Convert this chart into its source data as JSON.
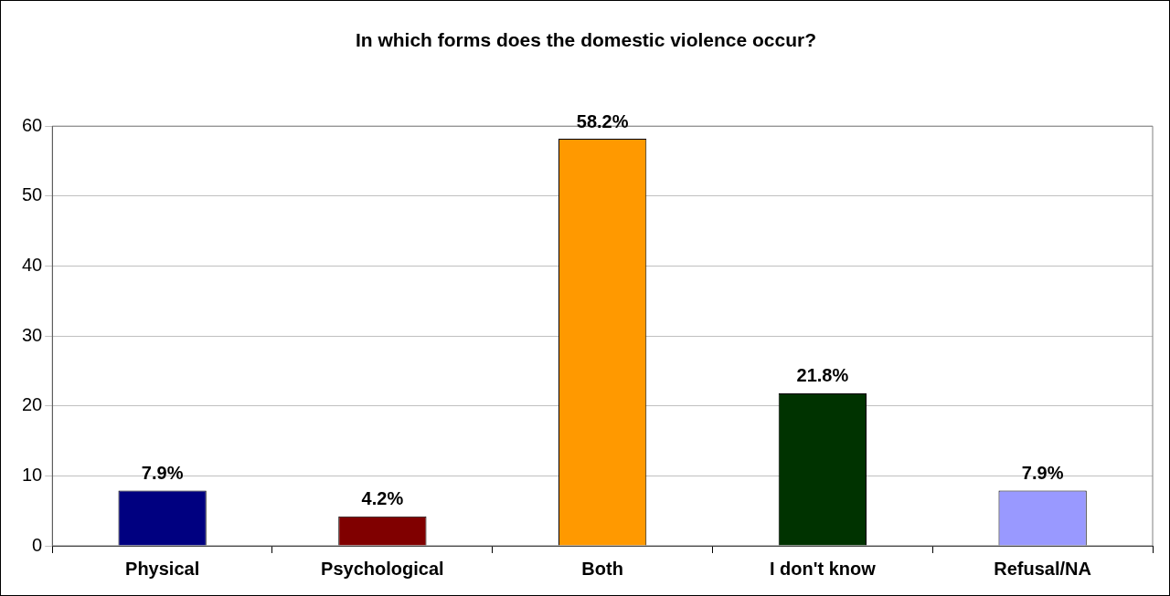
{
  "chart_data": {
    "type": "bar",
    "title": "In which forms does the domestic violence occur?",
    "categories": [
      "Physical",
      "Psychological",
      "Both",
      "I don't know",
      "Refusal/NA"
    ],
    "values": [
      7.9,
      4.2,
      58.2,
      21.8,
      7.9
    ],
    "colors": [
      "#000080",
      "#800000",
      "#ff9900",
      "#003300",
      "#9999ff"
    ],
    "value_labels": [
      "7.9%",
      "4.2%",
      "58.2%",
      "21.8%",
      "7.9%"
    ],
    "ylim": [
      0,
      60
    ],
    "yticks": [
      0,
      10,
      20,
      30,
      40,
      50,
      60
    ],
    "grid": "y",
    "legend": false
  }
}
